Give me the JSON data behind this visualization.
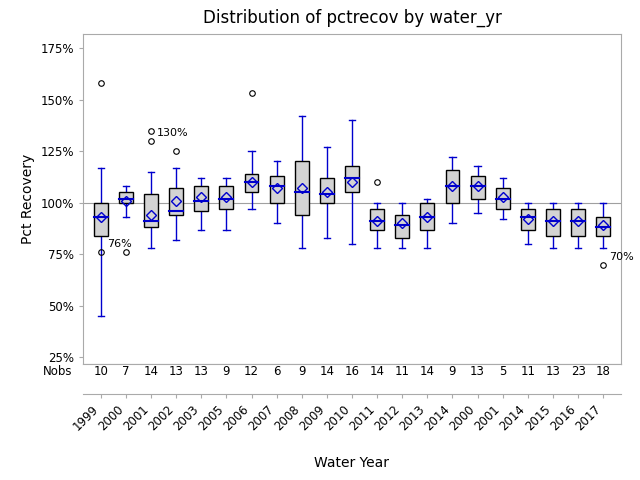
{
  "title": "Distribution of pctrecov by water_yr",
  "xlabel": "Water Year",
  "ylabel": "Pct Recovery",
  "nobs_label": "Nobs",
  "xlabels": [
    "1999",
    "2000",
    "2001",
    "2002",
    "2003",
    "2005",
    "2006",
    "2007",
    "2008",
    "2009",
    "2010",
    "2011",
    "2012",
    "2013",
    "2014",
    "2000",
    "2001",
    "2014",
    "2015",
    "2016",
    "2017"
  ],
  "nobs": [
    10,
    7,
    14,
    13,
    13,
    9,
    12,
    6,
    9,
    14,
    16,
    14,
    11,
    14,
    9,
    13,
    5,
    11,
    13,
    23,
    18
  ],
  "box_data": [
    {
      "q1": 84,
      "median": 93,
      "q3": 100,
      "mean": 93,
      "whislo": 45,
      "whishi": 117,
      "fliers_above": [
        158
      ],
      "fliers_below": [
        76
      ],
      "fliers_labeled": {
        "76": "76%"
      }
    },
    {
      "q1": 100,
      "median": 102,
      "q3": 105,
      "mean": 101,
      "whislo": 93,
      "whishi": 108,
      "fliers_above": [],
      "fliers_below": [
        76
      ],
      "fliers_labeled": {}
    },
    {
      "q1": 88,
      "median": 91,
      "q3": 104,
      "mean": 94,
      "whislo": 78,
      "whishi": 115,
      "fliers_above": [
        130,
        135
      ],
      "fliers_below": [],
      "fliers_labeled": {
        "130": "130%"
      }
    },
    {
      "q1": 94,
      "median": 96,
      "q3": 107,
      "mean": 101,
      "whislo": 82,
      "whishi": 117,
      "fliers_above": [
        125
      ],
      "fliers_below": [],
      "fliers_labeled": {}
    },
    {
      "q1": 96,
      "median": 101,
      "q3": 108,
      "mean": 103,
      "whislo": 87,
      "whishi": 112,
      "fliers_above": [],
      "fliers_below": [],
      "fliers_labeled": {}
    },
    {
      "q1": 97,
      "median": 102,
      "q3": 108,
      "mean": 103,
      "whislo": 87,
      "whishi": 112,
      "fliers_above": [],
      "fliers_below": [],
      "fliers_labeled": {}
    },
    {
      "q1": 105,
      "median": 110,
      "q3": 114,
      "mean": 110,
      "whislo": 97,
      "whishi": 125,
      "fliers_above": [
        153
      ],
      "fliers_below": [],
      "fliers_labeled": {}
    },
    {
      "q1": 100,
      "median": 108,
      "q3": 113,
      "mean": 107,
      "whislo": 90,
      "whishi": 120,
      "fliers_above": [],
      "fliers_below": [],
      "fliers_labeled": {}
    },
    {
      "q1": 94,
      "median": 105,
      "q3": 120,
      "mean": 107,
      "whislo": 78,
      "whishi": 142,
      "fliers_above": [],
      "fliers_below": [],
      "fliers_labeled": {}
    },
    {
      "q1": 100,
      "median": 104,
      "q3": 112,
      "mean": 105,
      "whislo": 83,
      "whishi": 127,
      "fliers_above": [],
      "fliers_below": [],
      "fliers_labeled": {}
    },
    {
      "q1": 105,
      "median": 112,
      "q3": 118,
      "mean": 110,
      "whislo": 80,
      "whishi": 140,
      "fliers_above": [],
      "fliers_below": [],
      "fliers_labeled": {}
    },
    {
      "q1": 87,
      "median": 91,
      "q3": 97,
      "mean": 91,
      "whislo": 78,
      "whishi": 100,
      "fliers_above": [
        110
      ],
      "fliers_below": [],
      "fliers_labeled": {}
    },
    {
      "q1": 83,
      "median": 89,
      "q3": 94,
      "mean": 90,
      "whislo": 78,
      "whishi": 100,
      "fliers_above": [],
      "fliers_below": [],
      "fliers_labeled": {}
    },
    {
      "q1": 87,
      "median": 93,
      "q3": 100,
      "mean": 93,
      "whislo": 78,
      "whishi": 102,
      "fliers_above": [],
      "fliers_below": [],
      "fliers_labeled": {}
    },
    {
      "q1": 100,
      "median": 108,
      "q3": 116,
      "mean": 108,
      "whislo": 90,
      "whishi": 122,
      "fliers_above": [],
      "fliers_below": [],
      "fliers_labeled": {}
    },
    {
      "q1": 102,
      "median": 108,
      "q3": 113,
      "mean": 108,
      "whislo": 95,
      "whishi": 118,
      "fliers_above": [],
      "fliers_below": [],
      "fliers_labeled": {}
    },
    {
      "q1": 97,
      "median": 102,
      "q3": 107,
      "mean": 103,
      "whislo": 92,
      "whishi": 112,
      "fliers_above": [],
      "fliers_below": [],
      "fliers_labeled": {}
    },
    {
      "q1": 87,
      "median": 93,
      "q3": 97,
      "mean": 92,
      "whislo": 80,
      "whishi": 100,
      "fliers_above": [],
      "fliers_below": [],
      "fliers_labeled": {}
    },
    {
      "q1": 84,
      "median": 91,
      "q3": 97,
      "mean": 91,
      "whislo": 78,
      "whishi": 100,
      "fliers_above": [],
      "fliers_below": [],
      "fliers_labeled": {}
    },
    {
      "q1": 84,
      "median": 91,
      "q3": 97,
      "mean": 91,
      "whislo": 78,
      "whishi": 100,
      "fliers_above": [],
      "fliers_below": [],
      "fliers_labeled": {}
    },
    {
      "q1": 84,
      "median": 88,
      "q3": 93,
      "mean": 89,
      "whislo": 78,
      "whishi": 100,
      "fliers_above": [],
      "fliers_below": [
        70
      ],
      "fliers_labeled": {
        "70": "70%"
      }
    }
  ],
  "box_facecolor": "#d3d3d3",
  "box_edgecolor": "#000000",
  "whisker_color": "#0000cd",
  "median_color": "#0000cd",
  "mean_color": "#0000cd",
  "flier_color": "#000000",
  "ref_line_y": 100,
  "ref_line_color": "#a0a0a0",
  "ylim": [
    22,
    182
  ],
  "yticks": [
    25,
    50,
    75,
    100,
    125,
    150,
    175
  ],
  "ytick_labels": [
    "25%",
    "50%",
    "75%",
    "100%",
    "125%",
    "150%",
    "175%"
  ],
  "title_fontsize": 12,
  "axis_fontsize": 10,
  "tick_fontsize": 8.5,
  "nobs_fontsize": 8.5,
  "background_color": "#ffffff"
}
